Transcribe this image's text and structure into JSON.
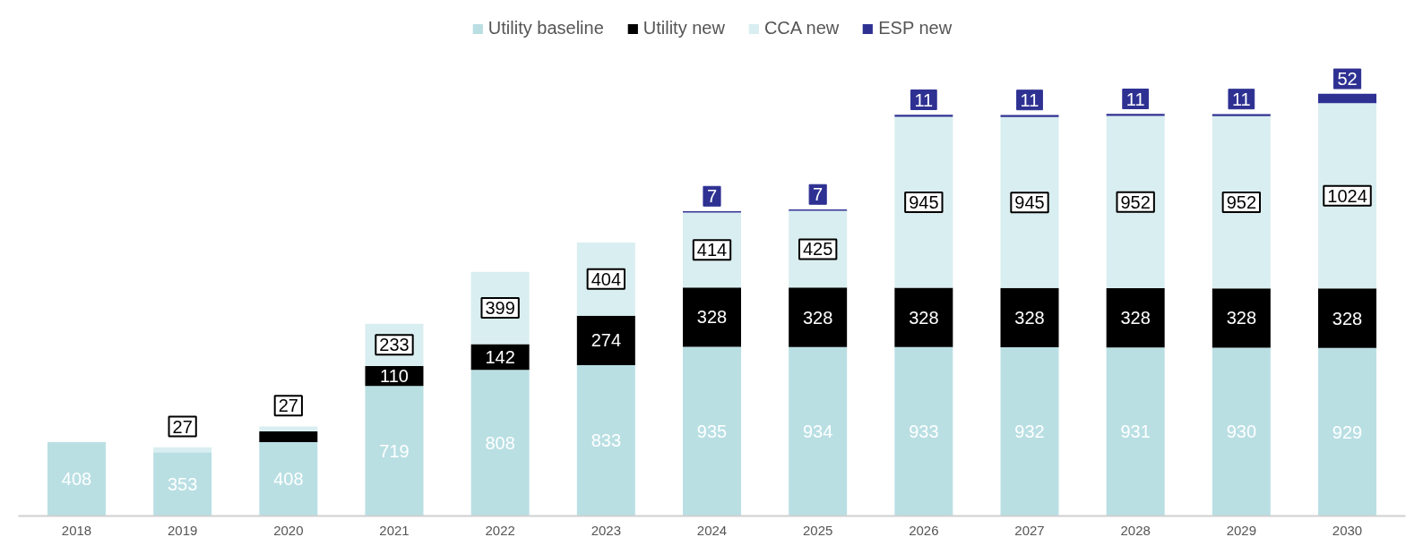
{
  "chart_data": {
    "type": "bar",
    "stacked": true,
    "legend": "top",
    "categories": [
      "2018",
      "2019",
      "2020",
      "2021",
      "2022",
      "2023",
      "2024",
      "2025",
      "2026",
      "2027",
      "2028",
      "2029",
      "2030"
    ],
    "series": [
      {
        "name": "Utility baseline",
        "color": "#b9dfe3",
        "values": [
          408,
          353,
          408,
          719,
          808,
          833,
          935,
          934,
          933,
          932,
          931,
          930,
          929
        ],
        "value_labels": [
          "408",
          "353",
          "408",
          "719",
          "808",
          "833",
          "935",
          "934",
          "933",
          "932",
          "931",
          "930",
          "929"
        ]
      },
      {
        "name": "Utility new",
        "color": "#000000",
        "values": [
          null,
          null,
          60,
          110,
          142,
          274,
          328,
          328,
          328,
          328,
          328,
          328,
          328
        ],
        "value_labels": [
          null,
          null,
          null,
          "110",
          "142",
          "274",
          "328",
          "328",
          "328",
          "328",
          "328",
          "328",
          "328"
        ]
      },
      {
        "name": "CCA new",
        "color": "#d9eef0",
        "values": [
          null,
          27,
          27,
          233,
          399,
          404,
          414,
          425,
          945,
          945,
          952,
          952,
          1024
        ],
        "value_labels": [
          null,
          "27",
          "27",
          "233",
          "399",
          "404",
          "414",
          "425",
          "945",
          "945",
          "952",
          "952",
          "1024"
        ]
      },
      {
        "name": "ESP new",
        "color": "#2e3192",
        "values": [
          null,
          null,
          null,
          null,
          null,
          null,
          7,
          7,
          11,
          11,
          11,
          11,
          52
        ],
        "value_labels": [
          null,
          null,
          null,
          null,
          null,
          null,
          "7",
          "7",
          "11",
          "11",
          "11",
          "11",
          "52"
        ]
      }
    ]
  }
}
